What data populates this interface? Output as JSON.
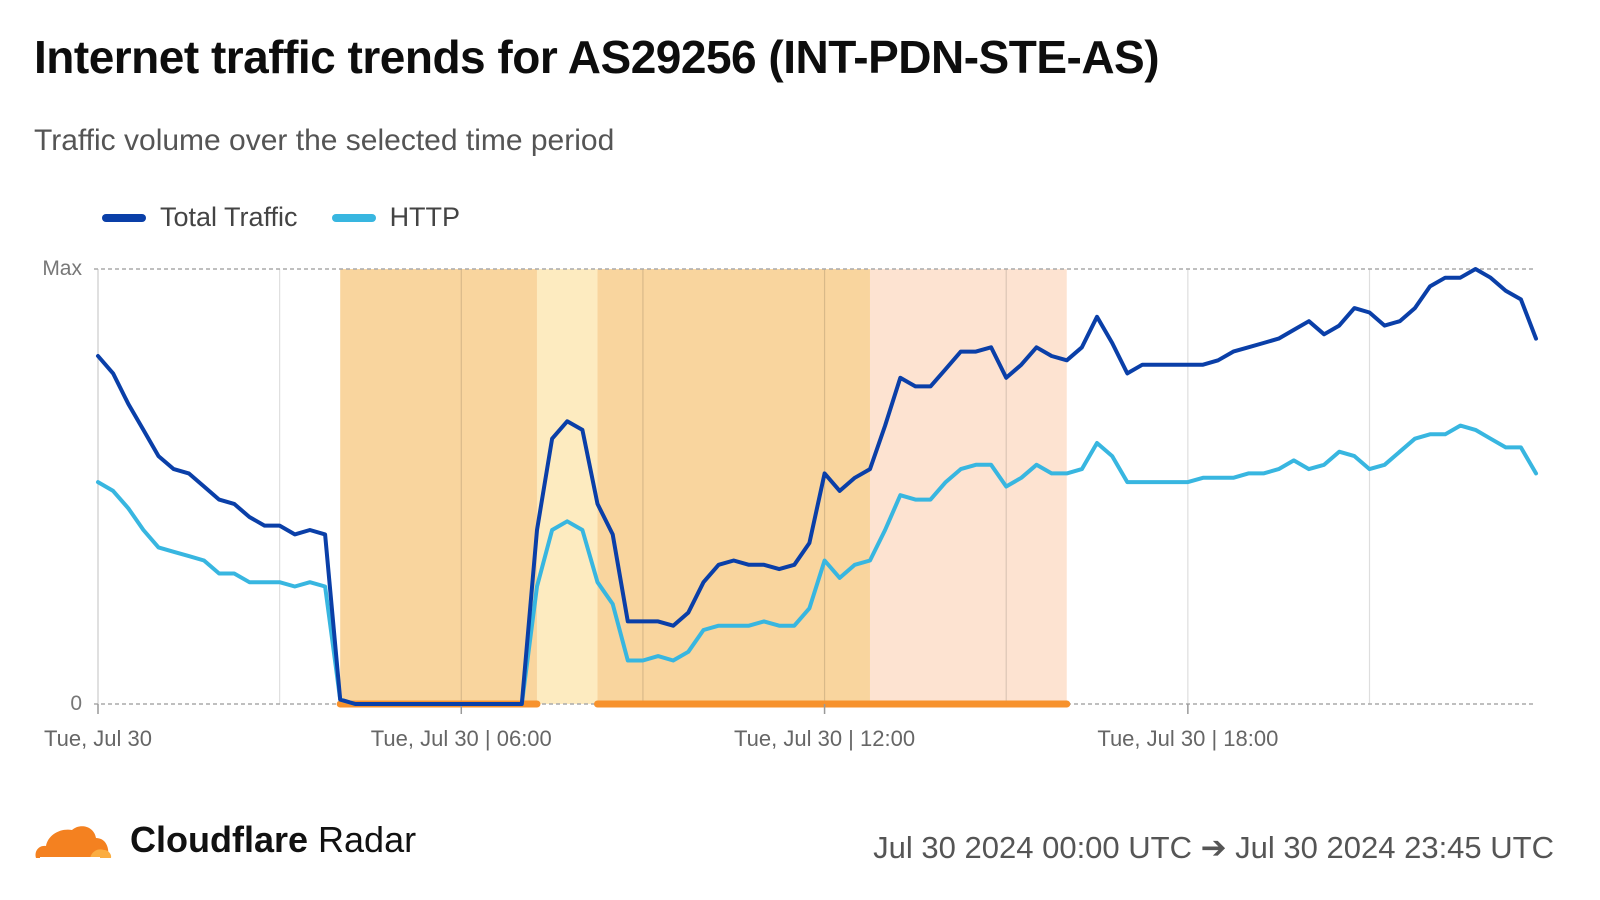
{
  "header": {
    "title": "Internet traffic trends for AS29256 (INT-PDN-STE-AS)",
    "subtitle": "Traffic volume over the selected time period"
  },
  "footer": {
    "brand_bold": "Cloudflare",
    "brand_light": "Radar",
    "date_range": "Jul 30 2024 00:00 UTC ➔ Jul 30 2024 23:45 UTC"
  },
  "colors": {
    "total": "#0a3fa8",
    "http": "#38b6e0",
    "outage_major": "#f9d59e",
    "outage_minor": "#fdebc0",
    "outage_light": "#fde3d1",
    "outage_bar": "#f7922d",
    "logo": "#f48120"
  },
  "chart_data": {
    "type": "line",
    "x_unit": "hours since Tue, Jul 30 00:00 UTC",
    "y_unit": "normalized traffic (0 to Max)",
    "ylim": [
      0,
      1
    ],
    "yticks": [
      {
        "value": 0,
        "label": "0"
      },
      {
        "value": 1,
        "label": "Max"
      }
    ],
    "xticks": [
      {
        "value": 0,
        "label": "Tue, Jul 30"
      },
      {
        "value": 6,
        "label": "Tue, Jul 30 | 06:00"
      },
      {
        "value": 12,
        "label": "Tue, Jul 30 | 12:00"
      },
      {
        "value": 18,
        "label": "Tue, Jul 30 | 18:00"
      }
    ],
    "xlim": [
      0,
      23.75
    ],
    "grid": true,
    "legend": "top-left",
    "series": [
      {
        "name": "Total Traffic",
        "color_key": "total",
        "points": [
          [
            0,
            0.8
          ],
          [
            0.25,
            0.76
          ],
          [
            0.5,
            0.69
          ],
          [
            0.75,
            0.63
          ],
          [
            1,
            0.57
          ],
          [
            1.25,
            0.54
          ],
          [
            1.5,
            0.53
          ],
          [
            1.75,
            0.5
          ],
          [
            2,
            0.47
          ],
          [
            2.25,
            0.46
          ],
          [
            2.5,
            0.43
          ],
          [
            2.75,
            0.41
          ],
          [
            3,
            0.41
          ],
          [
            3.25,
            0.39
          ],
          [
            3.5,
            0.4
          ],
          [
            3.75,
            0.39
          ],
          [
            4,
            0.01
          ],
          [
            4.25,
            0
          ],
          [
            4.5,
            0
          ],
          [
            5,
            0
          ],
          [
            5.5,
            0
          ],
          [
            6,
            0
          ],
          [
            6.5,
            0
          ],
          [
            7,
            0
          ],
          [
            7.25,
            0.4
          ],
          [
            7.5,
            0.61
          ],
          [
            7.75,
            0.65
          ],
          [
            8,
            0.63
          ],
          [
            8.25,
            0.46
          ],
          [
            8.5,
            0.39
          ],
          [
            8.75,
            0.19
          ],
          [
            9,
            0.19
          ],
          [
            9.25,
            0.19
          ],
          [
            9.5,
            0.18
          ],
          [
            9.75,
            0.21
          ],
          [
            10,
            0.28
          ],
          [
            10.25,
            0.32
          ],
          [
            10.5,
            0.33
          ],
          [
            10.75,
            0.32
          ],
          [
            11,
            0.32
          ],
          [
            11.25,
            0.31
          ],
          [
            11.5,
            0.32
          ],
          [
            11.75,
            0.37
          ],
          [
            12,
            0.53
          ],
          [
            12.25,
            0.49
          ],
          [
            12.5,
            0.52
          ],
          [
            12.75,
            0.54
          ],
          [
            13,
            0.64
          ],
          [
            13.25,
            0.75
          ],
          [
            13.5,
            0.73
          ],
          [
            13.75,
            0.73
          ],
          [
            14,
            0.77
          ],
          [
            14.25,
            0.81
          ],
          [
            14.5,
            0.81
          ],
          [
            14.75,
            0.82
          ],
          [
            15,
            0.75
          ],
          [
            15.25,
            0.78
          ],
          [
            15.5,
            0.82
          ],
          [
            15.75,
            0.8
          ],
          [
            16,
            0.79
          ],
          [
            16.25,
            0.82
          ],
          [
            16.5,
            0.89
          ],
          [
            16.75,
            0.83
          ],
          [
            17,
            0.76
          ],
          [
            17.25,
            0.78
          ],
          [
            17.5,
            0.78
          ],
          [
            17.75,
            0.78
          ],
          [
            18,
            0.78
          ],
          [
            18.25,
            0.78
          ],
          [
            18.5,
            0.79
          ],
          [
            18.75,
            0.81
          ],
          [
            19,
            0.82
          ],
          [
            19.25,
            0.83
          ],
          [
            19.5,
            0.84
          ],
          [
            19.75,
            0.86
          ],
          [
            20,
            0.88
          ],
          [
            20.25,
            0.85
          ],
          [
            20.5,
            0.87
          ],
          [
            20.75,
            0.91
          ],
          [
            21,
            0.9
          ],
          [
            21.25,
            0.87
          ],
          [
            21.5,
            0.88
          ],
          [
            21.75,
            0.91
          ],
          [
            22,
            0.96
          ],
          [
            22.25,
            0.98
          ],
          [
            22.5,
            0.98
          ],
          [
            22.75,
            1.0
          ],
          [
            23,
            0.98
          ],
          [
            23.25,
            0.95
          ],
          [
            23.5,
            0.93
          ],
          [
            23.75,
            0.84
          ]
        ]
      },
      {
        "name": "HTTP",
        "color_key": "http",
        "points": [
          [
            0,
            0.51
          ],
          [
            0.25,
            0.49
          ],
          [
            0.5,
            0.45
          ],
          [
            0.75,
            0.4
          ],
          [
            1,
            0.36
          ],
          [
            1.25,
            0.35
          ],
          [
            1.5,
            0.34
          ],
          [
            1.75,
            0.33
          ],
          [
            2,
            0.3
          ],
          [
            2.25,
            0.3
          ],
          [
            2.5,
            0.28
          ],
          [
            2.75,
            0.28
          ],
          [
            3,
            0.28
          ],
          [
            3.25,
            0.27
          ],
          [
            3.5,
            0.28
          ],
          [
            3.75,
            0.27
          ],
          [
            4,
            0.01
          ],
          [
            4.25,
            0
          ],
          [
            4.5,
            0
          ],
          [
            5,
            0
          ],
          [
            5.5,
            0
          ],
          [
            6,
            0
          ],
          [
            6.5,
            0
          ],
          [
            7,
            0
          ],
          [
            7.25,
            0.27
          ],
          [
            7.5,
            0.4
          ],
          [
            7.75,
            0.42
          ],
          [
            8,
            0.4
          ],
          [
            8.25,
            0.28
          ],
          [
            8.5,
            0.23
          ],
          [
            8.75,
            0.1
          ],
          [
            9,
            0.1
          ],
          [
            9.25,
            0.11
          ],
          [
            9.5,
            0.1
          ],
          [
            9.75,
            0.12
          ],
          [
            10,
            0.17
          ],
          [
            10.25,
            0.18
          ],
          [
            10.5,
            0.18
          ],
          [
            10.75,
            0.18
          ],
          [
            11,
            0.19
          ],
          [
            11.25,
            0.18
          ],
          [
            11.5,
            0.18
          ],
          [
            11.75,
            0.22
          ],
          [
            12,
            0.33
          ],
          [
            12.25,
            0.29
          ],
          [
            12.5,
            0.32
          ],
          [
            12.75,
            0.33
          ],
          [
            13,
            0.4
          ],
          [
            13.25,
            0.48
          ],
          [
            13.5,
            0.47
          ],
          [
            13.75,
            0.47
          ],
          [
            14,
            0.51
          ],
          [
            14.25,
            0.54
          ],
          [
            14.5,
            0.55
          ],
          [
            14.75,
            0.55
          ],
          [
            15,
            0.5
          ],
          [
            15.25,
            0.52
          ],
          [
            15.5,
            0.55
          ],
          [
            15.75,
            0.53
          ],
          [
            16,
            0.53
          ],
          [
            16.25,
            0.54
          ],
          [
            16.5,
            0.6
          ],
          [
            16.75,
            0.57
          ],
          [
            17,
            0.51
          ],
          [
            17.25,
            0.51
          ],
          [
            17.5,
            0.51
          ],
          [
            17.75,
            0.51
          ],
          [
            18,
            0.51
          ],
          [
            18.25,
            0.52
          ],
          [
            18.5,
            0.52
          ],
          [
            18.75,
            0.52
          ],
          [
            19,
            0.53
          ],
          [
            19.25,
            0.53
          ],
          [
            19.5,
            0.54
          ],
          [
            19.75,
            0.56
          ],
          [
            20,
            0.54
          ],
          [
            20.25,
            0.55
          ],
          [
            20.5,
            0.58
          ],
          [
            20.75,
            0.57
          ],
          [
            21,
            0.54
          ],
          [
            21.25,
            0.55
          ],
          [
            21.5,
            0.58
          ],
          [
            21.75,
            0.61
          ],
          [
            22,
            0.62
          ],
          [
            22.25,
            0.62
          ],
          [
            22.5,
            0.64
          ],
          [
            22.75,
            0.63
          ],
          [
            23,
            0.61
          ],
          [
            23.25,
            0.59
          ],
          [
            23.5,
            0.59
          ],
          [
            23.75,
            0.53
          ]
        ]
      }
    ],
    "outage_bands": [
      {
        "x0": 4,
        "x1": 7.25,
        "color_key": "outage_major"
      },
      {
        "x0": 7.25,
        "x1": 8.25,
        "color_key": "outage_minor"
      },
      {
        "x0": 8.25,
        "x1": 12.75,
        "color_key": "outage_major"
      },
      {
        "x0": 12.75,
        "x1": 16,
        "color_key": "outage_light"
      }
    ],
    "outage_bars": [
      {
        "x0": 4,
        "x1": 7.25
      },
      {
        "x0": 8.25,
        "x1": 16
      }
    ]
  }
}
